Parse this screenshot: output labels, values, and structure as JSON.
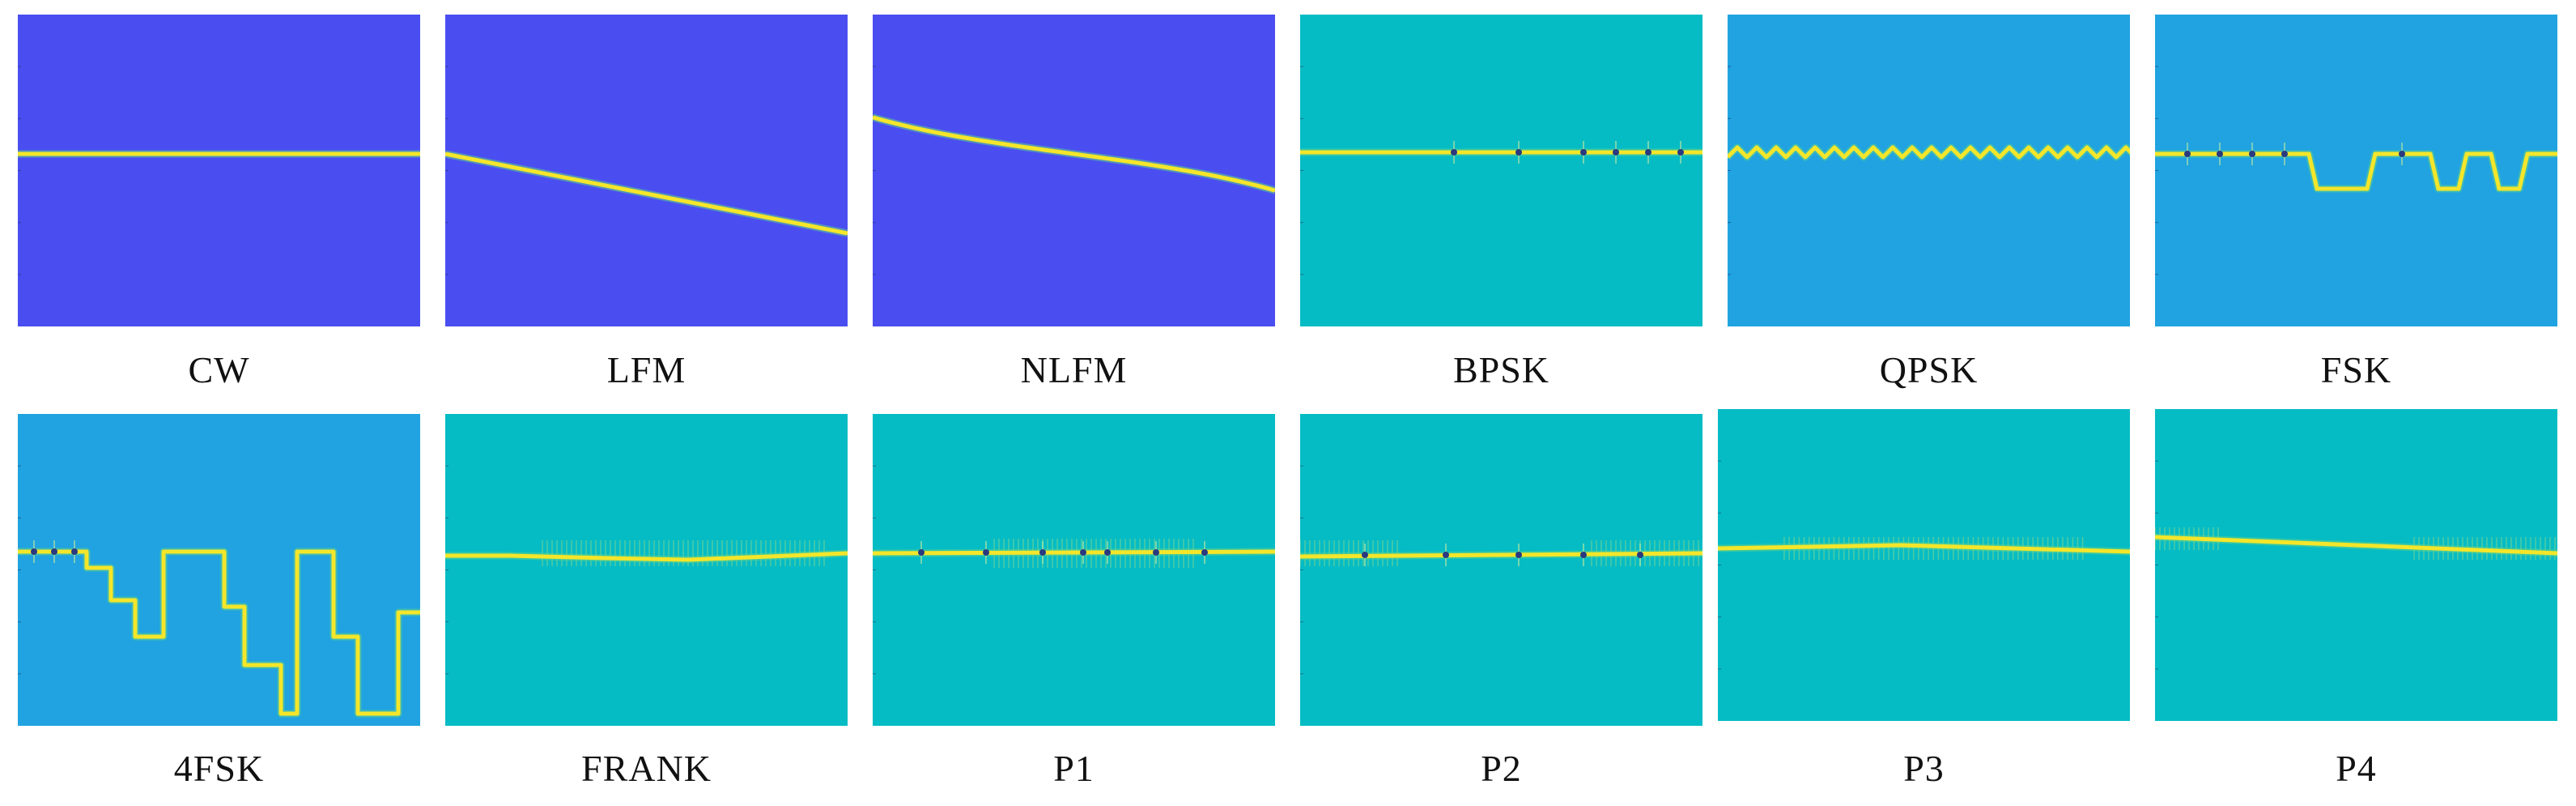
{
  "colors": {
    "deep_blue": "#4a4ef0",
    "light_blue": "#20a3e0",
    "teal": "#05bcc4",
    "ridge_yellow": "#f4e62a",
    "ridge_green": "#5fd08a"
  },
  "panels": [
    {
      "id": "cw",
      "label": "CW",
      "bg": "deep_blue",
      "shape": "flat"
    },
    {
      "id": "lfm",
      "label": "LFM",
      "bg": "deep_blue",
      "shape": "slope"
    },
    {
      "id": "nlfm",
      "label": "NLFM",
      "bg": "deep_blue",
      "shape": "tanh"
    },
    {
      "id": "bpsk",
      "label": "BPSK",
      "bg": "teal",
      "shape": "flat-knots"
    },
    {
      "id": "qpsk",
      "label": "QPSK",
      "bg": "light_blue",
      "shape": "zigzag"
    },
    {
      "id": "fsk",
      "label": "FSK",
      "bg": "light_blue",
      "shape": "steps"
    },
    {
      "id": "4fsk",
      "label": "4FSK",
      "bg": "light_blue",
      "shape": "steps4"
    },
    {
      "id": "frank",
      "label": "FRANK",
      "bg": "teal",
      "shape": "frank"
    },
    {
      "id": "p1",
      "label": "P1",
      "bg": "teal",
      "shape": "p1"
    },
    {
      "id": "p2",
      "label": "P2",
      "bg": "teal",
      "shape": "p2"
    },
    {
      "id": "p3",
      "label": "P3",
      "bg": "teal",
      "shape": "p3"
    },
    {
      "id": "p4",
      "label": "P4",
      "bg": "teal",
      "shape": "p4"
    }
  ]
}
